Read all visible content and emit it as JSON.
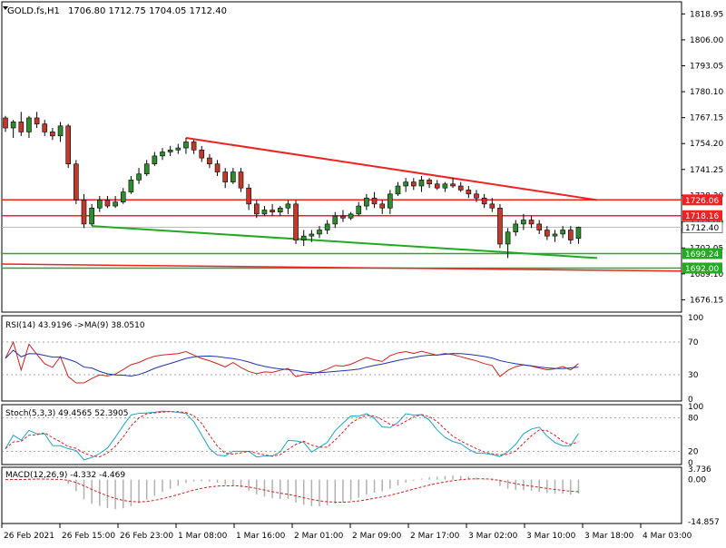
{
  "header": {
    "symbol": "GOLD.fs,H1",
    "ohlc": "1706.80 1712.75 1704.05 1712.40"
  },
  "colors": {
    "bull": "#2e8b2e",
    "bear": "#c0392b",
    "resistance": "#ee2222",
    "support": "#22aa22",
    "rsi_line": "#2233aa",
    "rsi_ma": "#cc2222",
    "stoch_main": "#1fa3c6",
    "stoch_signal": "#cc2222",
    "macd_hist": "#b0b0b0",
    "macd_signal": "#cc2222",
    "grid": "#888888"
  },
  "price_axis": {
    "labels": [
      "1818.95",
      "1806.00",
      "1793.05",
      "1780.10",
      "1767.15",
      "1754.20",
      "1741.25",
      "1728.30",
      "1715.00",
      "1702.05",
      "1689.10",
      "1676.15"
    ],
    "badges": [
      {
        "label": "1726.06",
        "price": 1726.06,
        "color": "#ee2222"
      },
      {
        "label": "1718.16",
        "price": 1718.16,
        "color": "#ee2222"
      },
      {
        "label": "1712.40",
        "price": 1712.4,
        "color": "#ffffff"
      },
      {
        "label": "1699.24",
        "price": 1699.24,
        "color": "#22aa22"
      },
      {
        "label": "1692.00",
        "price": 1692.0,
        "color": "#22aa22"
      }
    ]
  },
  "rsi": {
    "title": "RSI(14) 43.9196  ->MA(9) 38.0510",
    "axis": [
      "100",
      "70",
      "30",
      "0"
    ]
  },
  "stoch": {
    "title": "Stoch(5,3,3) 49.4565 52.3905",
    "axis": [
      "100",
      "80",
      "20",
      "0"
    ]
  },
  "macd": {
    "title": "MACD(12,26,9) -4.332 -4.469",
    "axis": [
      "3.736",
      "0.00",
      "-14.857"
    ]
  },
  "time_axis": [
    "26 Feb 2021",
    "26 Feb 15:00",
    "26 Feb 23:00",
    "1 Mar 08:00",
    "1 Mar 16:00",
    "2 Mar 01:00",
    "2 Mar 09:00",
    "2 Mar 17:00",
    "3 Mar 02:00",
    "3 Mar 10:00",
    "3 Mar 18:00",
    "4 Mar 03:00"
  ],
  "chart_data": {
    "type": "candlestick",
    "price_range": [
      1670,
      1825
    ],
    "horizontal_levels": [
      1726.06,
      1718.16,
      1699.24,
      1692.0
    ],
    "candles": [
      [
        1767,
        1768,
        1760,
        1762
      ],
      [
        1762,
        1766,
        1757,
        1765
      ],
      [
        1765,
        1770,
        1758,
        1760
      ],
      [
        1760,
        1768,
        1757,
        1767
      ],
      [
        1767,
        1770,
        1762,
        1764
      ],
      [
        1764,
        1766,
        1758,
        1760
      ],
      [
        1760,
        1762,
        1756,
        1758
      ],
      [
        1758,
        1765,
        1755,
        1763
      ],
      [
        1763,
        1764,
        1742,
        1744
      ],
      [
        1744,
        1746,
        1724,
        1726
      ],
      [
        1726,
        1729,
        1712,
        1714
      ],
      [
        1714,
        1724,
        1713,
        1722
      ],
      [
        1722,
        1728,
        1720,
        1726
      ],
      [
        1726,
        1728,
        1722,
        1723
      ],
      [
        1723,
        1728,
        1722,
        1725
      ],
      [
        1725,
        1732,
        1724,
        1730
      ],
      [
        1730,
        1738,
        1729,
        1736
      ],
      [
        1736,
        1742,
        1734,
        1739
      ],
      [
        1739,
        1746,
        1738,
        1744
      ],
      [
        1744,
        1750,
        1743,
        1748
      ],
      [
        1748,
        1752,
        1746,
        1750
      ],
      [
        1750,
        1753,
        1748,
        1751
      ],
      [
        1751,
        1754,
        1749,
        1752
      ],
      [
        1752,
        1757,
        1749,
        1755
      ],
      [
        1755,
        1756,
        1749,
        1751
      ],
      [
        1751,
        1753,
        1745,
        1747
      ],
      [
        1747,
        1749,
        1742,
        1744
      ],
      [
        1744,
        1746,
        1738,
        1740
      ],
      [
        1740,
        1742,
        1732,
        1735
      ],
      [
        1735,
        1742,
        1734,
        1740
      ],
      [
        1740,
        1742,
        1730,
        1732
      ],
      [
        1732,
        1734,
        1721,
        1724
      ],
      [
        1724,
        1726,
        1717,
        1719
      ],
      [
        1719,
        1723,
        1718,
        1721
      ],
      [
        1721,
        1724,
        1718,
        1720
      ],
      [
        1720,
        1723,
        1718,
        1722
      ],
      [
        1722,
        1726,
        1719,
        1724
      ],
      [
        1724,
        1726,
        1704,
        1706
      ],
      [
        1706,
        1711,
        1703,
        1708
      ],
      [
        1708,
        1711,
        1705,
        1709
      ],
      [
        1709,
        1713,
        1707,
        1711
      ],
      [
        1711,
        1716,
        1709,
        1714
      ],
      [
        1714,
        1720,
        1712,
        1718
      ],
      [
        1718,
        1721,
        1715,
        1717
      ],
      [
        1717,
        1720,
        1716,
        1719
      ],
      [
        1719,
        1725,
        1718,
        1723
      ],
      [
        1723,
        1729,
        1721,
        1727
      ],
      [
        1727,
        1730,
        1722,
        1724
      ],
      [
        1724,
        1726,
        1719,
        1722
      ],
      [
        1722,
        1731,
        1719,
        1729
      ],
      [
        1729,
        1735,
        1728,
        1733
      ],
      [
        1733,
        1737,
        1730,
        1735
      ],
      [
        1735,
        1737,
        1731,
        1733
      ],
      [
        1733,
        1738,
        1730,
        1736
      ],
      [
        1736,
        1737,
        1732,
        1734
      ],
      [
        1734,
        1736,
        1731,
        1732
      ],
      [
        1732,
        1735,
        1730,
        1734
      ],
      [
        1734,
        1737,
        1732,
        1733
      ],
      [
        1733,
        1735,
        1730,
        1731
      ],
      [
        1731,
        1733,
        1727,
        1729
      ],
      [
        1729,
        1731,
        1725,
        1727
      ],
      [
        1727,
        1729,
        1722,
        1724
      ],
      [
        1724,
        1727,
        1720,
        1722
      ],
      [
        1722,
        1724,
        1702,
        1704
      ],
      [
        1704,
        1712,
        1697,
        1710
      ],
      [
        1710,
        1716,
        1708,
        1714
      ],
      [
        1714,
        1719,
        1711,
        1716
      ],
      [
        1716,
        1718,
        1712,
        1714
      ],
      [
        1714,
        1716,
        1709,
        1711
      ],
      [
        1711,
        1713,
        1706,
        1708
      ],
      [
        1708,
        1711,
        1705,
        1709
      ],
      [
        1709,
        1713,
        1707,
        1711
      ],
      [
        1711,
        1713,
        1704,
        1706
      ],
      [
        1706.8,
        1712.75,
        1704.05,
        1712.4
      ]
    ],
    "trendlines": [
      {
        "name": "resistance",
        "color": "#ee2222",
        "points": [
          [
            23,
            1757
          ],
          [
            74,
            1726
          ]
        ]
      },
      {
        "name": "support",
        "color": "#22aa22",
        "points": [
          [
            11,
            1713
          ],
          [
            74,
            1697
          ]
        ]
      }
    ]
  }
}
